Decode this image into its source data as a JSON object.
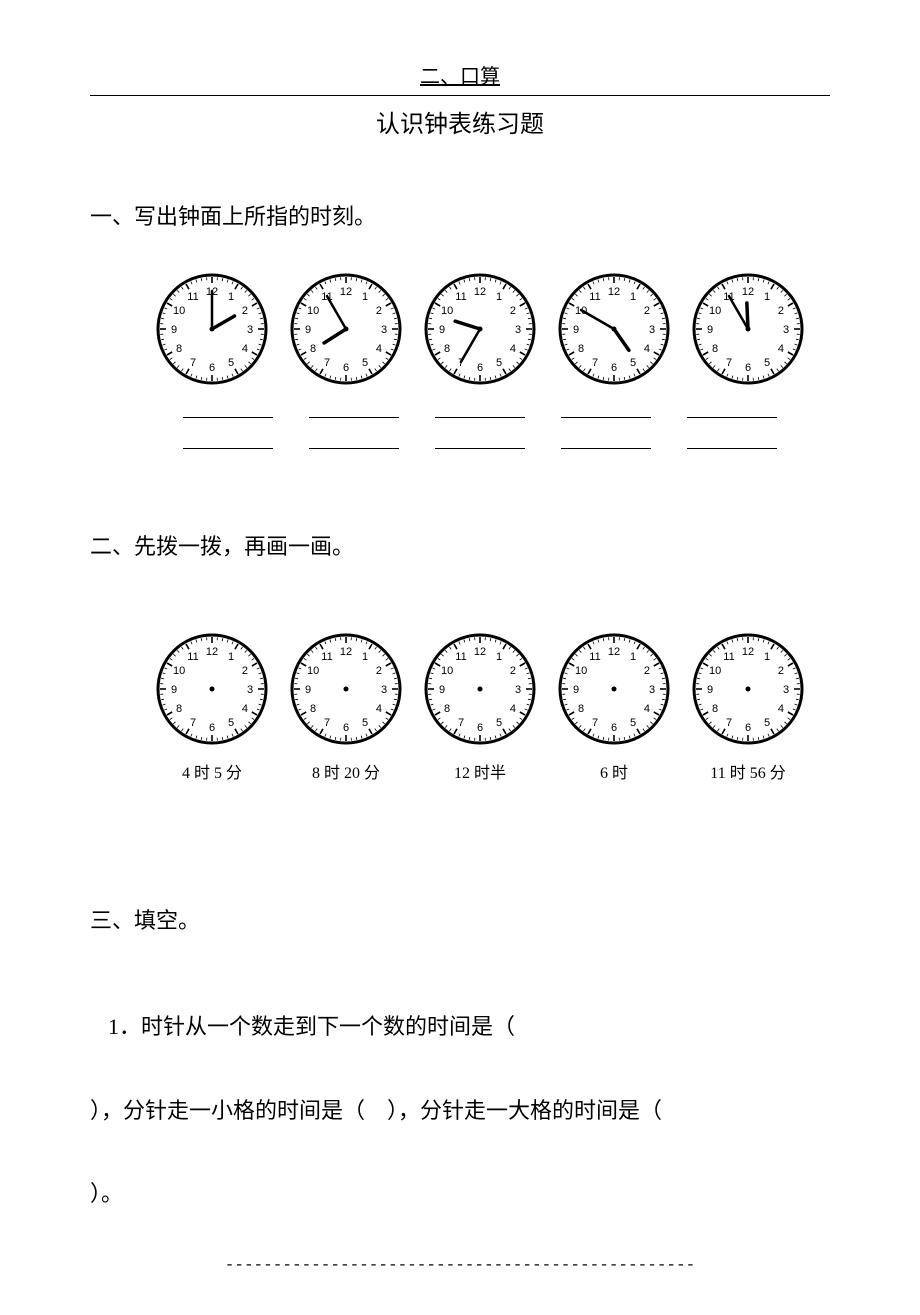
{
  "header": {
    "top": "二、口算",
    "title": "认识钟表练习题"
  },
  "sections": {
    "s1": {
      "heading": "一、写出钟面上所指的时刻。",
      "clocks": [
        {
          "hour": 2,
          "minute": 0,
          "hasHands": true
        },
        {
          "hour": 7,
          "minute": 55,
          "hasHands": true
        },
        {
          "hour": 9,
          "minute": 35,
          "hasHands": true
        },
        {
          "hour": 4,
          "minute": 50,
          "hasHands": true
        },
        {
          "hour": 11,
          "minute": 55,
          "hasHands": true
        }
      ]
    },
    "s2": {
      "heading": "二、先拨一拨，再画一画。",
      "clocks": [
        {
          "hasHands": false,
          "caption": "4 时 5 分"
        },
        {
          "hasHands": false,
          "caption": "8 时 20 分"
        },
        {
          "hasHands": false,
          "caption": "12 时半"
        },
        {
          "hasHands": false,
          "caption": "6 时"
        },
        {
          "hasHands": false,
          "caption": "11 时 56 分"
        }
      ]
    },
    "s3": {
      "heading": "三、填空。",
      "q1_a": "1．时针从一个数走到下一个数的时间是（",
      "q1_b": "），分针走一小格的时间是（　），分针走一大格的时间是（",
      "q1_c": "）。"
    }
  },
  "footer": {
    "dashes": "-------------------------------------------------"
  },
  "style": {
    "clock": {
      "radius": 54,
      "stroke": "#000000",
      "face": "#ffffff",
      "borderWidth": 3,
      "numberFontSize": 11,
      "minuteHandLen": 38,
      "hourHandLen": 26,
      "minuteHandWidth": 2.5,
      "hourHandWidth": 3.5,
      "tickMajorLen": 6,
      "tickMinorLen": 3
    }
  }
}
